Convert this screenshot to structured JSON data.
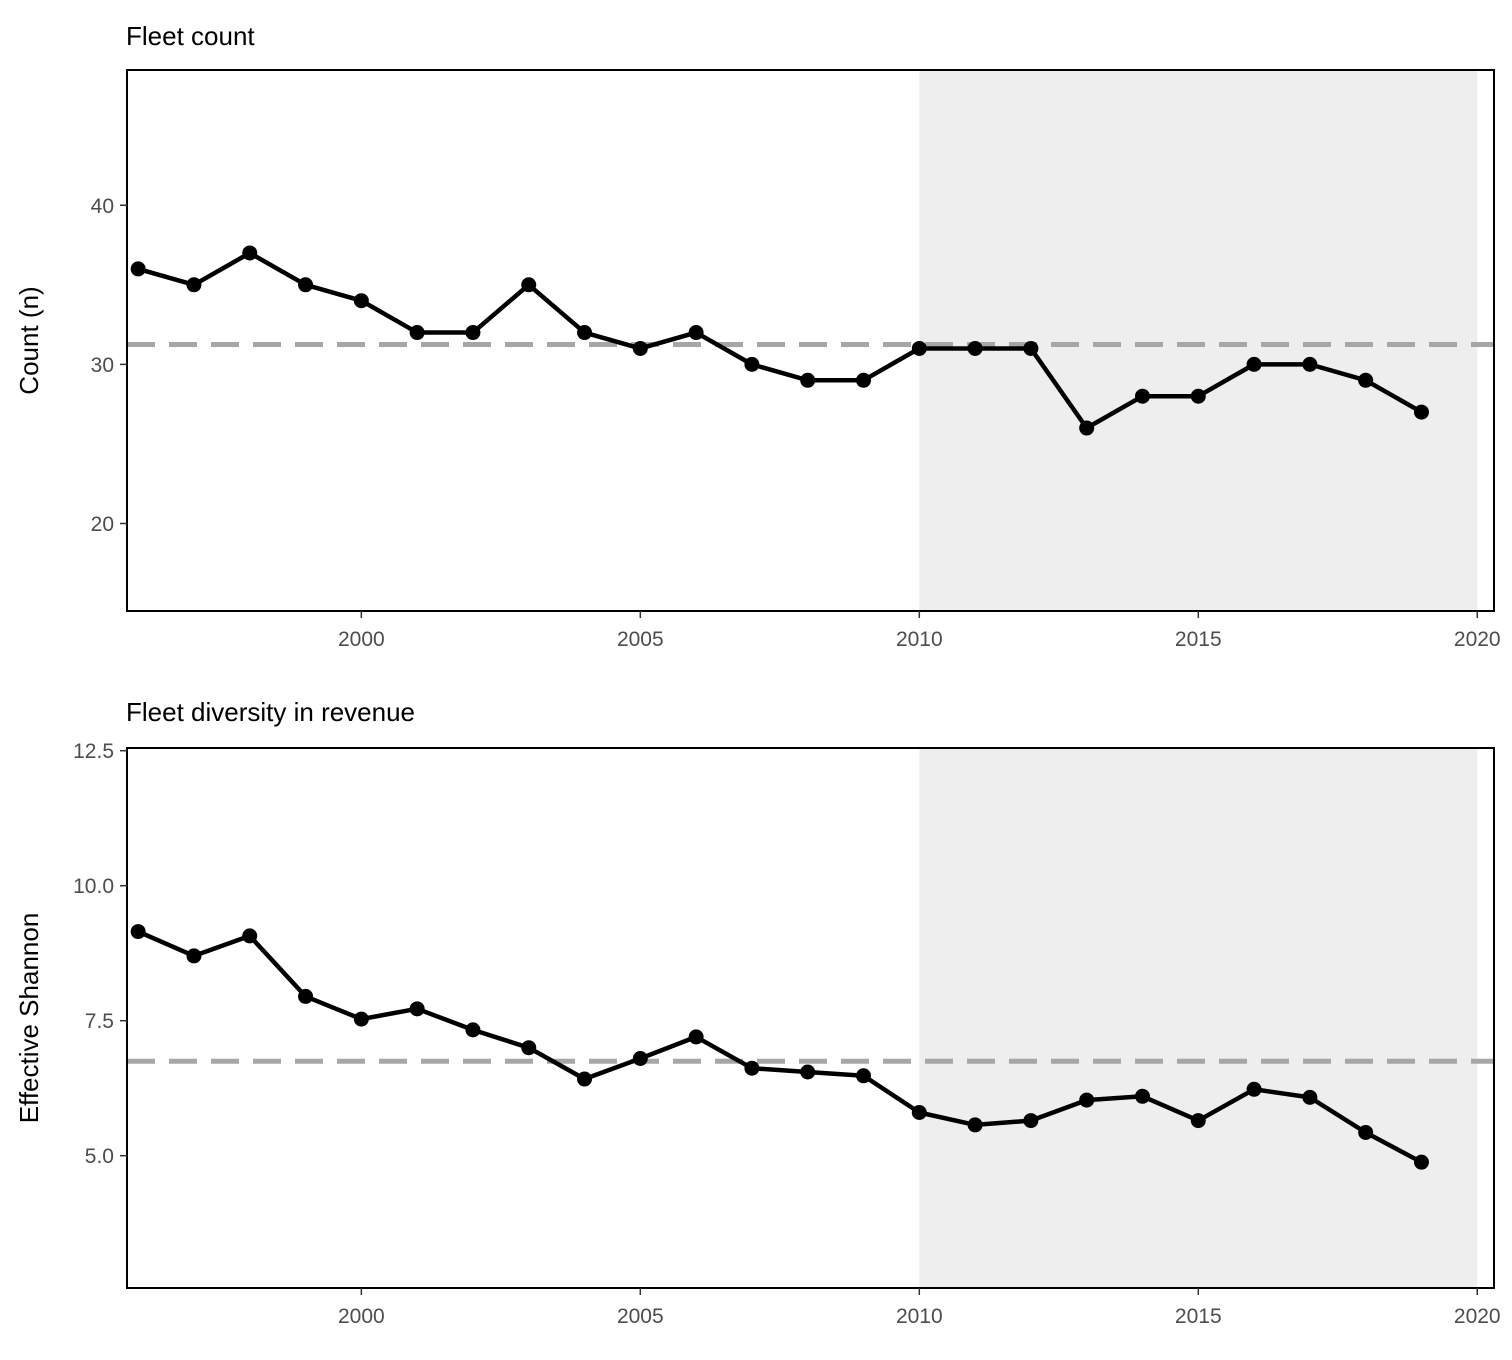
{
  "chart_data": [
    {
      "type": "line",
      "title": "Fleet count",
      "xlabel": "",
      "ylabel": "Count (n)",
      "xlim": [
        1995.8,
        2020.3
      ],
      "ylim": [
        14.5,
        48.5
      ],
      "x_ticks": [
        2000,
        2005,
        2010,
        2015,
        2020
      ],
      "x_tick_labels": [
        "2000",
        "2005",
        "2010",
        "2015",
        "2020"
      ],
      "y_ticks": [
        20,
        30,
        40
      ],
      "y_tick_labels": [
        "20",
        "30",
        "40"
      ],
      "grid": false,
      "shaded_region": {
        "x_start": 2010,
        "x_end": 2020,
        "color": "#eeeeee"
      },
      "reference_line": {
        "y": 31.25,
        "style": "dashed",
        "color": "#a6a6a6"
      },
      "series": [
        {
          "x": [
            1996,
            1997,
            1998,
            1999,
            2000,
            2001,
            2002,
            2003,
            2004,
            2005,
            2006,
            2007,
            2008,
            2009,
            2010,
            2011,
            2012,
            2013,
            2014,
            2015,
            2016,
            2017,
            2018,
            2019
          ],
          "values": [
            36,
            35,
            37,
            35,
            34,
            32,
            32,
            35,
            32,
            31,
            32,
            30,
            29,
            29,
            31,
            31,
            31,
            26,
            28,
            28,
            30,
            30,
            29,
            27
          ]
        }
      ]
    },
    {
      "type": "line",
      "title": "Fleet diversity in revenue",
      "xlabel": "",
      "ylabel": "Effective Shannon",
      "xlim": [
        1995.8,
        2020.3
      ],
      "ylim": [
        2.55,
        12.55
      ],
      "x_ticks": [
        2000,
        2005,
        2010,
        2015,
        2020
      ],
      "x_tick_labels": [
        "2000",
        "2005",
        "2010",
        "2015",
        "2020"
      ],
      "y_ticks": [
        5,
        7.5,
        10,
        12.5
      ],
      "y_tick_labels": [
        "5.0",
        "7.5",
        "10.0",
        "12.5"
      ],
      "grid": false,
      "shaded_region": {
        "x_start": 2010,
        "x_end": 2020,
        "color": "#eeeeee"
      },
      "reference_line": {
        "y": 6.75,
        "style": "dashed",
        "color": "#a6a6a6"
      },
      "series": [
        {
          "x": [
            1996,
            1997,
            1998,
            1999,
            2000,
            2001,
            2002,
            2003,
            2004,
            2005,
            2006,
            2007,
            2008,
            2009,
            2010,
            2011,
            2012,
            2013,
            2014,
            2015,
            2016,
            2017,
            2018,
            2019
          ],
          "values": [
            9.15,
            8.7,
            9.07,
            7.95,
            7.53,
            7.72,
            7.33,
            7.0,
            6.42,
            6.8,
            7.2,
            6.62,
            6.55,
            6.48,
            5.8,
            5.57,
            5.65,
            6.03,
            6.1,
            5.65,
            6.23,
            6.08,
            5.43,
            4.88
          ]
        }
      ]
    }
  ]
}
